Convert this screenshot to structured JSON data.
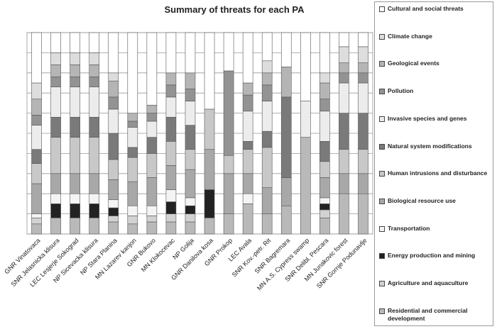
{
  "chart_data": {
    "type": "bar",
    "stacked": true,
    "title": "Summary of threats for each PA",
    "categories": [
      "GNR Vinatovaca",
      "SNR Jelasnicka klisura",
      "LEC Lesjerje Sokograd",
      "NP Sicevacka klisura",
      "NP Stara Planina",
      "MN Lazarev kanjon",
      "GNR Bukovo",
      "MN Klokocevac",
      "NP Golija",
      "GNR Danilova kosa",
      "GNR Prokop",
      "LEC Avala",
      "SNR Kov.-petr. Rit",
      "SNR Bagremara",
      "MN A.S. Cypress swamp",
      "SNR Delibl. Pescara",
      "MN Junakovic forest",
      "SNR Gornje Podunavlje"
    ],
    "ylim": [
      0,
      100
    ],
    "yticks": [
      0,
      10,
      20,
      30,
      40,
      50,
      60,
      70,
      80,
      90,
      100
    ],
    "grid": true,
    "series": [
      {
        "name": "Cultural and social threats",
        "color": "#ffffff",
        "values": [
          25,
          10,
          10,
          10,
          20,
          40,
          36,
          20,
          20,
          38,
          19,
          25,
          14,
          17,
          34,
          20,
          7,
          7
        ]
      },
      {
        "name": "Climate change",
        "color": "#dddddd",
        "values": [
          8,
          6,
          6,
          6,
          4,
          0,
          0,
          0,
          0,
          0,
          0,
          0,
          6,
          0,
          0,
          5,
          8,
          8
        ]
      },
      {
        "name": "Geological events",
        "color": "#b5b5b5",
        "values": [
          8,
          6,
          6,
          6,
          8,
          4,
          4,
          6,
          8,
          0,
          0,
          6,
          6,
          15,
          0,
          8,
          5,
          5
        ]
      },
      {
        "name": "Pollution",
        "color": "#939393",
        "values": [
          5,
          5,
          5,
          5,
          6,
          3,
          4,
          6,
          6,
          0,
          42,
          8,
          8,
          0,
          0,
          6,
          5,
          5
        ]
      },
      {
        "name": "Invasive species and genes",
        "color": "#ececec",
        "values": [
          12,
          15,
          15,
          15,
          12,
          10,
          8,
          10,
          12,
          0,
          0,
          15,
          15,
          0,
          18,
          15,
          15,
          15
        ]
      },
      {
        "name": "Natural system modifications",
        "color": "#7a7a7a",
        "values": [
          7,
          10,
          10,
          10,
          13,
          5,
          8,
          12,
          12,
          0,
          0,
          4,
          8,
          40,
          0,
          10,
          18,
          18
        ]
      },
      {
        "name": "Human intrusions and disturbance",
        "color": "#c8c8c8",
        "values": [
          10,
          18,
          18,
          18,
          10,
          12,
          12,
          12,
          10,
          20,
          9,
          12,
          20,
          0,
          0,
          8,
          12,
          12
        ]
      },
      {
        "name": "Biological resource use",
        "color": "#a8a8a8",
        "values": [
          15,
          10,
          10,
          10,
          10,
          12,
          14,
          12,
          14,
          20,
          20,
          10,
          13,
          14,
          0,
          10,
          10,
          10
        ]
      },
      {
        "name": "Transportation",
        "color": "#f4f4f4",
        "values": [
          2,
          5,
          5,
          5,
          4,
          5,
          5,
          6,
          4,
          0,
          0,
          5,
          0,
          0,
          0,
          3,
          0,
          0
        ]
      },
      {
        "name": "Energy production and mining",
        "color": "#222222",
        "values": [
          0,
          7,
          7,
          7,
          4,
          0,
          0,
          6,
          4,
          14,
          0,
          0,
          0,
          0,
          0,
          3,
          0,
          0
        ]
      },
      {
        "name": "Agriculture and aquaculture",
        "color": "#d2d2d2",
        "values": [
          3,
          0,
          0,
          0,
          3,
          4,
          3,
          4,
          4,
          0,
          0,
          0,
          0,
          0,
          0,
          4,
          0,
          0
        ]
      },
      {
        "name": "Residential and commercial development",
        "color": "#b9b9b9",
        "values": [
          5,
          8,
          8,
          8,
          6,
          5,
          6,
          6,
          6,
          8,
          10,
          15,
          10,
          14,
          48,
          8,
          20,
          20
        ]
      }
    ]
  }
}
